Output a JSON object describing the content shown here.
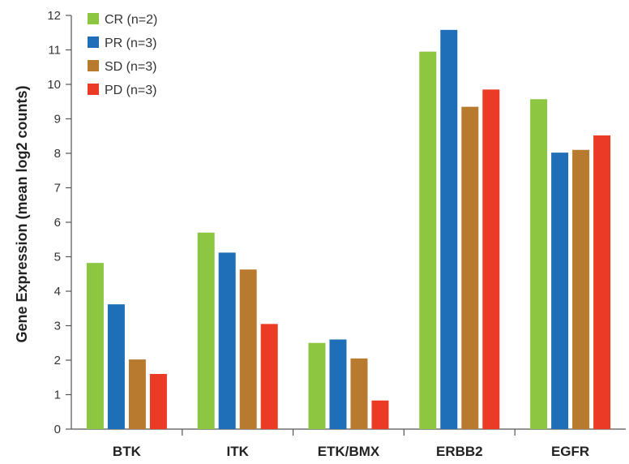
{
  "chart_data": {
    "type": "bar",
    "ylabel": "Gene Expression (mean log2 counts)",
    "xlabel": "",
    "ylim": [
      0,
      12
    ],
    "yticks": [
      0,
      1,
      2,
      3,
      4,
      5,
      6,
      7,
      8,
      9,
      10,
      11,
      12
    ],
    "categories": [
      "BTK",
      "ITK",
      "ETK/BMX",
      "ERBB2",
      "EGFR"
    ],
    "series": [
      {
        "name": "CR (n=2)",
        "color": "#8dc641",
        "values": [
          4.82,
          5.7,
          2.5,
          10.95,
          9.57
        ]
      },
      {
        "name": "PR (n=3)",
        "color": "#1f6fb8",
        "values": [
          3.62,
          5.12,
          2.6,
          11.58,
          8.02
        ]
      },
      {
        "name": "SD (n=3)",
        "color": "#b87a2e",
        "values": [
          2.02,
          4.63,
          2.05,
          9.35,
          8.1
        ]
      },
      {
        "name": "PD (n=3)",
        "color": "#ec3b24",
        "values": [
          1.6,
          3.05,
          0.83,
          9.85,
          8.52
        ]
      }
    ],
    "legend_position": "top-left",
    "grid": false
  }
}
